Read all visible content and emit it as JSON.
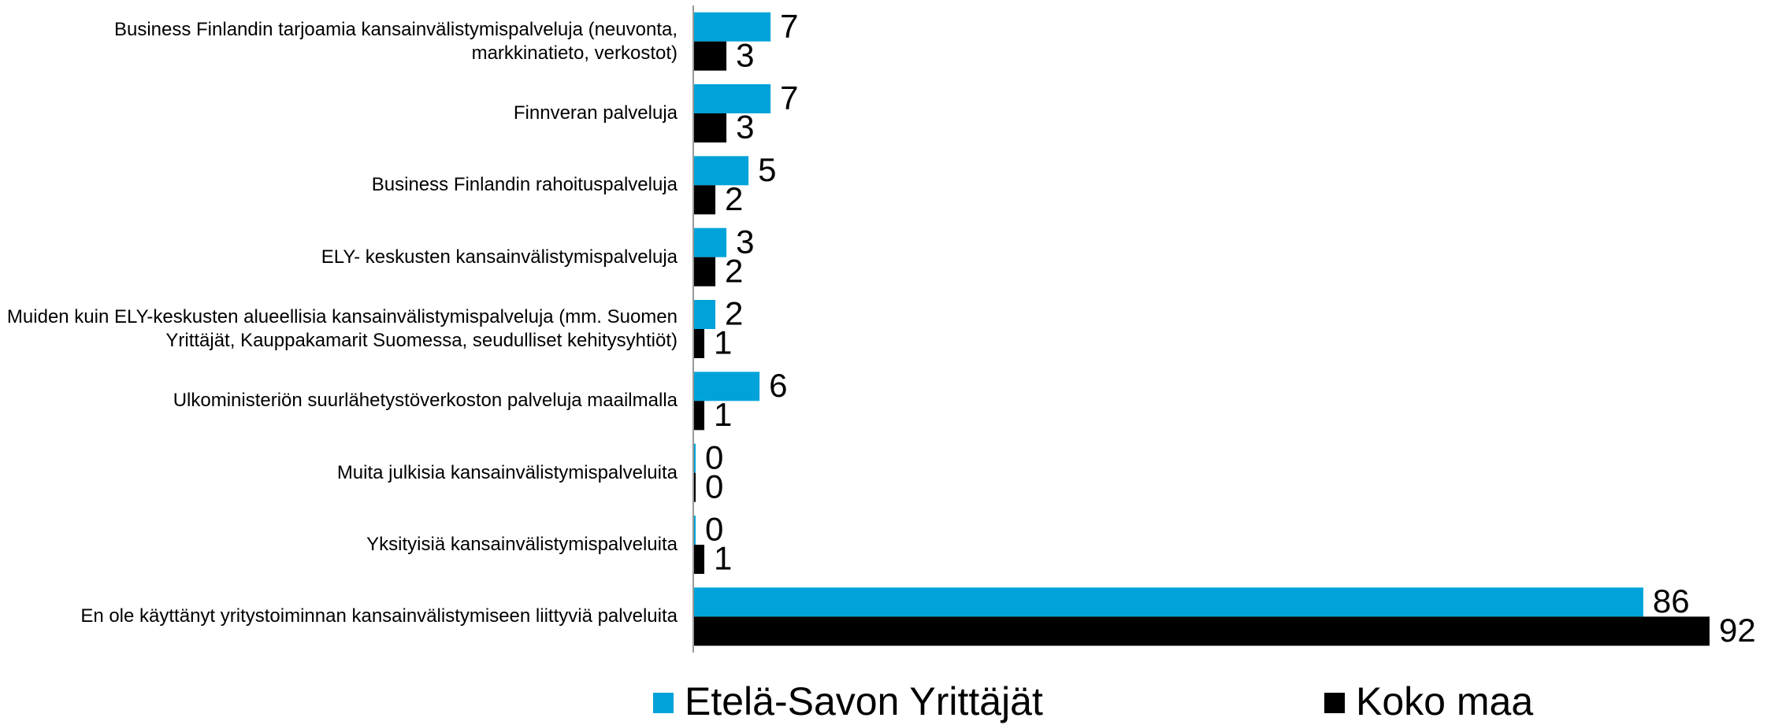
{
  "chart_data": {
    "type": "bar",
    "orientation": "horizontal",
    "categories": [
      "Business Finlandin tarjoamia kansainvälistymispalveluja (neuvonta, markkinatieto, verkostot)",
      "Finnveran palveluja",
      "Business Finlandin rahoituspalveluja",
      "ELY- keskusten kansainvälistymispalveluja",
      "Muiden kuin ELY-keskusten alueellisia kansainvälistymispalveluja (mm. Suomen Yrittäjät, Kauppakamarit Suomessa, seudulliset kehitysyhtiöt)",
      "Ulkoministeriön suurlähetystöverkoston palveluja maailmalla",
      "Muita julkisia kansainvälistymispalveluita",
      "Yksityisiä kansainvälistymispalveluita",
      "En ole käyttänyt yritystoiminnan kansainvälistymiseen liittyviä palveluita"
    ],
    "series": [
      {
        "name": "Etelä-Savon Yrittäjät",
        "color": "#00a3d9",
        "values": [
          7,
          7,
          5,
          3,
          2,
          6,
          0,
          0,
          86
        ]
      },
      {
        "name": "Koko maa",
        "color": "#000000",
        "values": [
          3,
          3,
          2,
          2,
          1,
          1,
          0,
          1,
          92
        ]
      }
    ],
    "xlim": [
      0,
      92
    ],
    "legend": "bottom"
  }
}
